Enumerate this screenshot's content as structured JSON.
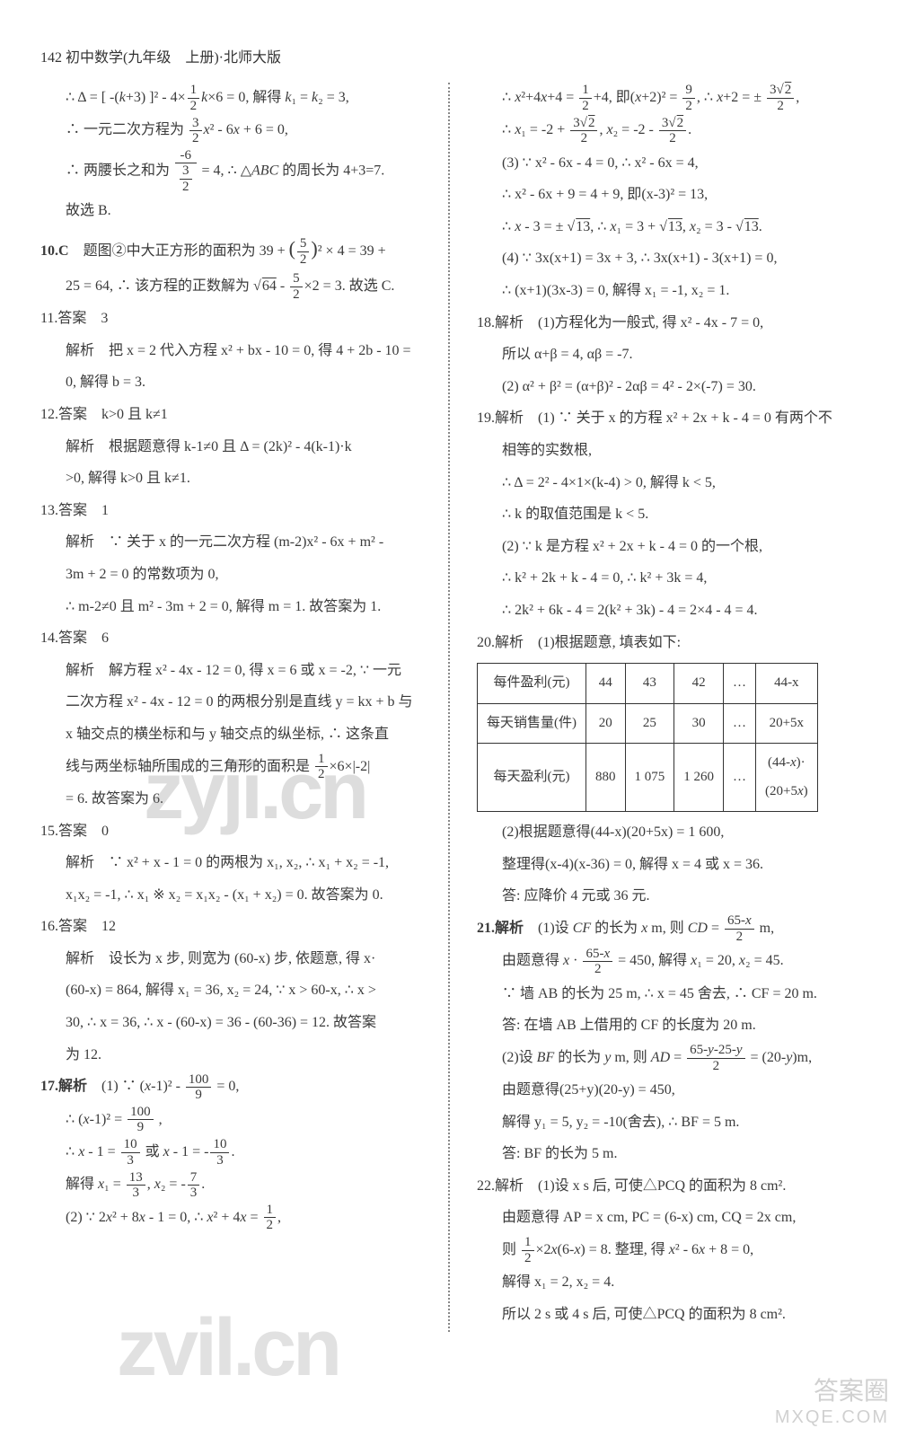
{
  "header": "142 初中数学(九年级　上册)·北师大版",
  "left": {
    "l1": "∴ Δ = [ -(k+3) ]² - 4×(1/2)k×6 = 0, 解得 k₁ = k₂ = 3,",
    "l2": "∴ 一元二次方程为 (3/2)x² - 6x + 6 = 0,",
    "l3": "∴ 两腰长之和为 -(-6)/(3/2) = 4, ∴ △ABC 的周长为 4+3=7.",
    "l4": "故选 B.",
    "q10": "10.C　题图②中大正方形的面积为 39 + (5/2)² × 4 = 39 +",
    "q10b": "25 = 64, ∴ 该方程的正数解为 √64 - (5/2)×2 = 3. 故选 C.",
    "q11": "11.答案　3",
    "q11b": "解析　把 x = 2 代入方程 x² + bx - 10 = 0, 得 4 + 2b - 10 =",
    "q11c": "0, 解得 b = 3.",
    "q12": "12.答案　k>0 且 k≠1",
    "q12b": "解析　根据题意得 k-1≠0 且 Δ = (2k)² - 4(k-1)·k",
    "q12c": ">0, 解得 k>0 且 k≠1.",
    "q13": "13.答案　1",
    "q13b": "解析　∵ 关于 x 的一元二次方程 (m-2)x² - 6x + m² -",
    "q13c": "3m + 2 = 0 的常数项为 0,",
    "q13d": "∴ m-2≠0 且 m² - 3m + 2 = 0, 解得 m = 1. 故答案为 1.",
    "q14": "14.答案　6",
    "q14b": "解析　解方程 x² - 4x - 12 = 0, 得 x = 6 或 x = -2, ∵ 一元",
    "q14c": "二次方程 x² - 4x - 12 = 0 的两根分别是直线 y = kx + b 与",
    "q14d": "x 轴交点的横坐标和与 y 轴交点的纵坐标, ∴ 这条直",
    "q14e": "线与两坐标轴所围成的三角形的面积是 (1/2)×6×|-2|",
    "q14f": "= 6. 故答案为 6.",
    "q15": "15.答案　0",
    "q15b": "解析　∵ x² + x - 1 = 0 的两根为 x₁, x₂, ∴ x₁ + x₂ = -1,",
    "q15c": "x₁x₂ = -1, ∴ x₁ ※ x₂ = x₁x₂ - (x₁ + x₂) = 0. 故答案为 0.",
    "q16": "16.答案　12",
    "q16b": "解析　设长为 x 步, 则宽为 (60-x) 步, 依题意, 得 x·",
    "q16c": "(60-x) = 864, 解得 x₁ = 36, x₂ = 24, ∵ x > 60-x, ∴ x >",
    "q16d": "30, ∴ x = 36, ∴ x - (60-x) = 36 - (60-36) = 12. 故答案",
    "q16e": "为 12.",
    "q17": "17.解析　(1) ∵ (x-1)² - 100/9 = 0,",
    "q17b": "∴ (x-1)² = 100/9 ,",
    "q17c": "∴ x - 1 = 10/3 或 x - 1 = -10/3.",
    "q17d": "解得 x₁ = 13/3, x₂ = -7/3.",
    "q17e": "(2) ∵ 2x² + 8x - 1 = 0, ∴ x² + 4x = 1/2,"
  },
  "right": {
    "r1": "∴ x² + 4x + 4 = 1/2 + 4, 即(x+2)² = 9/2, ∴ x+2 = ± (3√2)/2,",
    "r2": "∴ x₁ = -2 + (3√2)/2, x₂ = -2 - (3√2)/2.",
    "r3": "(3) ∵ x² - 6x - 4 = 0, ∴ x² - 6x = 4,",
    "r4": "∴ x² - 6x + 9 = 4 + 9, 即(x-3)² = 13,",
    "r5": "∴ x - 3 = ± √13, ∴ x₁ = 3 + √13, x₂ = 3 - √13.",
    "r6": "(4) ∵ 3x(x+1) = 3x + 3, ∴ 3x(x+1) - 3(x+1) = 0,",
    "r7": "∴ (x+1)(3x-3) = 0, 解得 x₁ = -1, x₂ = 1.",
    "q18": "18.解析　(1)方程化为一般式, 得 x² - 4x - 7 = 0,",
    "q18b": "所以 α+β = 4, αβ = -7.",
    "q18c": "(2) α² + β² = (α+β)² - 2αβ = 4² - 2×(-7) = 30.",
    "q19": "19.解析　(1) ∵ 关于 x 的方程 x² + 2x + k - 4 = 0 有两个不",
    "q19b": "相等的实数根,",
    "q19c": "∴ Δ = 2² - 4×1×(k-4) > 0, 解得 k < 5,",
    "q19d": "∴ k 的取值范围是 k < 5.",
    "q19e": "(2) ∵ k 是方程 x² + 2x + k - 4 = 0 的一个根,",
    "q19f": "∴ k² + 2k + k - 4 = 0, ∴ k² + 3k = 4,",
    "q19g": "∴ 2k² + 6k - 4 = 2(k² + 3k) - 4 = 2×4 - 4 = 4.",
    "q20": "20.解析　(1)根据题意, 填表如下:",
    "table": {
      "headers": [
        "每件盈利(元)",
        "44",
        "43",
        "42",
        "…",
        "44-x"
      ],
      "row1": [
        "每天销售量(件)",
        "20",
        "25",
        "30",
        "…",
        "20+5x"
      ],
      "row2": [
        "每天盈利(元)",
        "880",
        "1 075",
        "1 260",
        "…",
        "(44-x)·(20+5x)"
      ]
    },
    "q20b": "(2)根据题意得(44-x)(20+5x) = 1 600,",
    "q20c": "整理得(x-4)(x-36) = 0, 解得 x = 4 或 x = 36.",
    "q20d": "答: 应降价 4 元或 36 元.",
    "q21": "21.解析　(1)设 CF 的长为 x m, 则 CD = (65-x)/2 m,",
    "q21b": "由题意得 x · (65-x)/2 = 450, 解得 x₁ = 20, x₂ = 45.",
    "q21c": "∵ 墙 AB 的长为 25 m, ∴ x = 45 舍去, ∴ CF = 20 m.",
    "q21d": "答: 在墙 AB 上借用的 CF 的长度为 20 m.",
    "q21e": "(2)设 BF 的长为 y m, 则 AD = (65-y-25-y)/2 = (20-y)m,",
    "q21f": "由题意得(25+y)(20-y) = 450,",
    "q21g": "解得 y₁ = 5, y₂ = -10(舍去), ∴ BF = 5 m.",
    "q21h": "答: BF 的长为 5 m.",
    "q22": "22.解析　(1)设 x s 后, 可使△PCQ 的面积为 8 cm².",
    "q22b": "由题意得 AP = x cm, PC = (6-x) cm, CQ = 2x cm,",
    "q22c": "则 (1/2)×2x(6-x) = 8. 整理, 得 x² - 6x + 8 = 0,",
    "q22d": "解得 x₁ = 2, x₂ = 4.",
    "q22e": "所以 2 s 或 4 s 后, 可使△PCQ 的面积为 8 cm²."
  },
  "watermarks": {
    "wm1": "zyji.cn",
    "wm2": "zvil.cn",
    "corner1": "答案圈",
    "corner2": "MXQE.COM"
  }
}
